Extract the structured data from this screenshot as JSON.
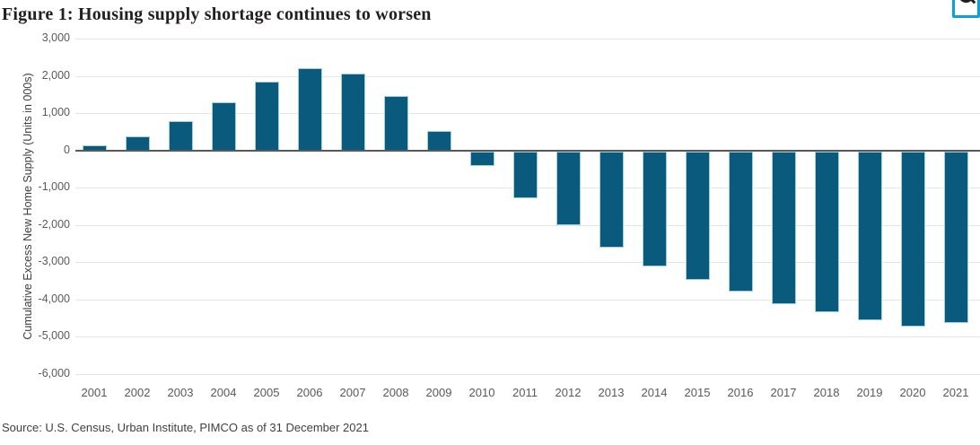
{
  "figure": {
    "title": "Figure 1: Housing supply shortage continues to worsen",
    "source": "Source: U.S. Census, Urban Institute, PIMCO as of 31 December 2021"
  },
  "icons": {
    "zoom_icon": "magnifier-in-blue-square"
  },
  "colors": {
    "bar_fill": "#0a5a7d",
    "bar_stroke": "#a5cede",
    "axis_line": "#58595b",
    "gridline": "#e5e5e5",
    "tick_text": "#58595b",
    "title_text": "#231f20",
    "icon_blue": "#0d9fd8",
    "source_text": "#414042"
  },
  "chart_data": {
    "type": "bar",
    "title": "Figure 1: Housing supply shortage continues to worsen",
    "xlabel": "",
    "ylabel": "Cumulative Excess New Home Supply (Units in 000s)",
    "ylim": [
      -6000,
      3000
    ],
    "ytick_interval": 1000,
    "grid": true,
    "legend": "none",
    "categories": [
      "2001",
      "2002",
      "2003",
      "2004",
      "2005",
      "2006",
      "2007",
      "2008",
      "2009",
      "2010",
      "2011",
      "2012",
      "2013",
      "2014",
      "2015",
      "2016",
      "2017",
      "2018",
      "2019",
      "2020",
      "2021"
    ],
    "values": [
      140,
      380,
      790,
      1280,
      1850,
      2200,
      2060,
      1470,
      530,
      -390,
      -1270,
      -1980,
      -2580,
      -3080,
      -3440,
      -3760,
      -4090,
      -4320,
      -4540,
      -4690,
      -4610
    ],
    "ytick_labels": [
      "3,000",
      "2,000",
      "1,000",
      "0",
      "-1,000",
      "-2,000",
      "-3,000",
      "-4,000",
      "-5,000",
      "-6,000"
    ]
  }
}
